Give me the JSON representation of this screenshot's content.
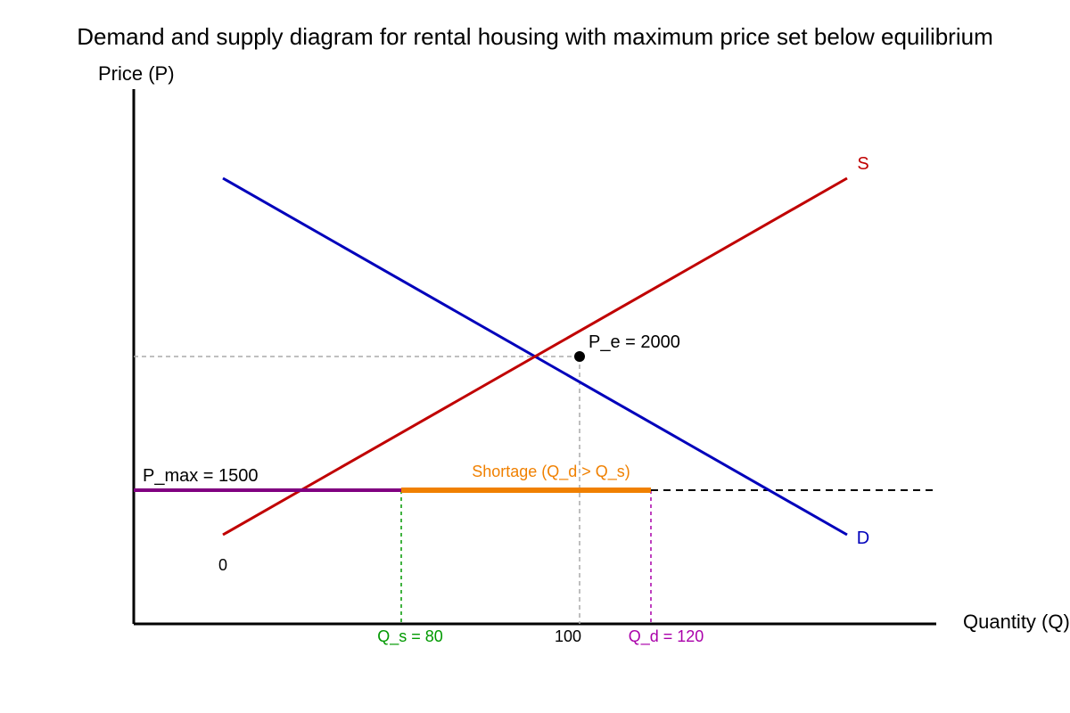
{
  "title": "Demand and supply diagram for rental housing with maximum price set below equilibrium",
  "axes": {
    "y_label": "Price (P)",
    "x_label": "Quantity (Q)",
    "origin_label": "0"
  },
  "curves": {
    "supply": {
      "label": "S",
      "color": "#c00000"
    },
    "demand": {
      "label": "D",
      "color": "#0000bb"
    }
  },
  "equilibrium": {
    "label": "P_e = 2000",
    "quantity_label": "100"
  },
  "price_ceiling": {
    "label": "P_max = 1500",
    "color": "#800080"
  },
  "quantities": {
    "supplied_label": "Q_s = 80",
    "supplied_color": "#009900",
    "demanded_label": "Q_d = 120",
    "demanded_color": "#aa00aa"
  },
  "shortage": {
    "label": "Shortage (Q_d > Q_s)",
    "color": "#f08000"
  }
}
